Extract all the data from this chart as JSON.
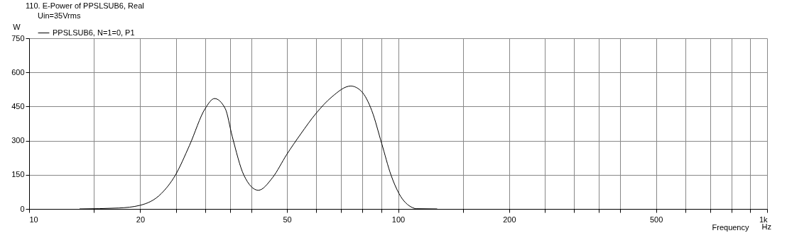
{
  "chart_data": {
    "type": "line",
    "title": "110. E-Power of PPSLSUB6, Real",
    "annotations": [
      "Uin=35Vrms",
      "Hz"
    ],
    "xlabel": "Frequency",
    "ylabel": "W",
    "x": [
      13.7,
      17.5,
      20,
      22.8,
      24.9,
      27.2,
      30,
      31.8,
      34,
      35.5,
      38.2,
      41.8,
      45.7,
      49.9,
      54.5,
      60,
      66.1,
      74.4,
      79.5,
      84.9,
      90.2,
      95.7,
      100.6,
      109.3,
      111.8,
      127.6
    ],
    "series": [
      {
        "name": "PPSLSUB6, N=1=0, P1",
        "color": "#000000",
        "values": [
          0,
          4,
          16,
          67,
          148,
          279,
          441,
          485,
          441,
          320,
          148,
          82,
          138,
          239,
          330,
          421,
          492,
          540,
          517,
          431,
          289,
          148,
          67,
          6,
          1,
          0
        ]
      }
    ],
    "log": "x",
    "xlim": [
      10,
      1000
    ],
    "xticks": [
      10,
      {
        "value": 15,
        "label": null
      },
      20,
      {
        "value": 25,
        "label": null
      },
      {
        "value": 30,
        "label": null
      },
      {
        "value": 35,
        "label": null
      },
      {
        "value": 40,
        "label": null
      },
      50,
      {
        "value": 60,
        "label": null
      },
      {
        "value": 70,
        "label": null
      },
      {
        "value": 80,
        "label": null
      },
      {
        "value": 90,
        "label": null
      },
      100,
      {
        "value": 150,
        "label": null
      },
      200,
      {
        "value": 250,
        "label": null
      },
      {
        "value": 300,
        "label": null
      },
      {
        "value": 350,
        "label": null
      },
      {
        "value": 400,
        "label": null
      },
      500,
      {
        "value": 600,
        "label": null
      },
      {
        "value": 700,
        "label": null
      },
      {
        "value": 800,
        "label": null
      },
      {
        "value": 900,
        "label": null
      },
      {
        "value": 1000,
        "label": "1k"
      }
    ],
    "ylim": [
      0,
      750
    ],
    "yticks": [
      0,
      150,
      300,
      450,
      600,
      750
    ],
    "grid": true,
    "legend": "top left",
    "line_style": "solid",
    "marker": "none"
  }
}
